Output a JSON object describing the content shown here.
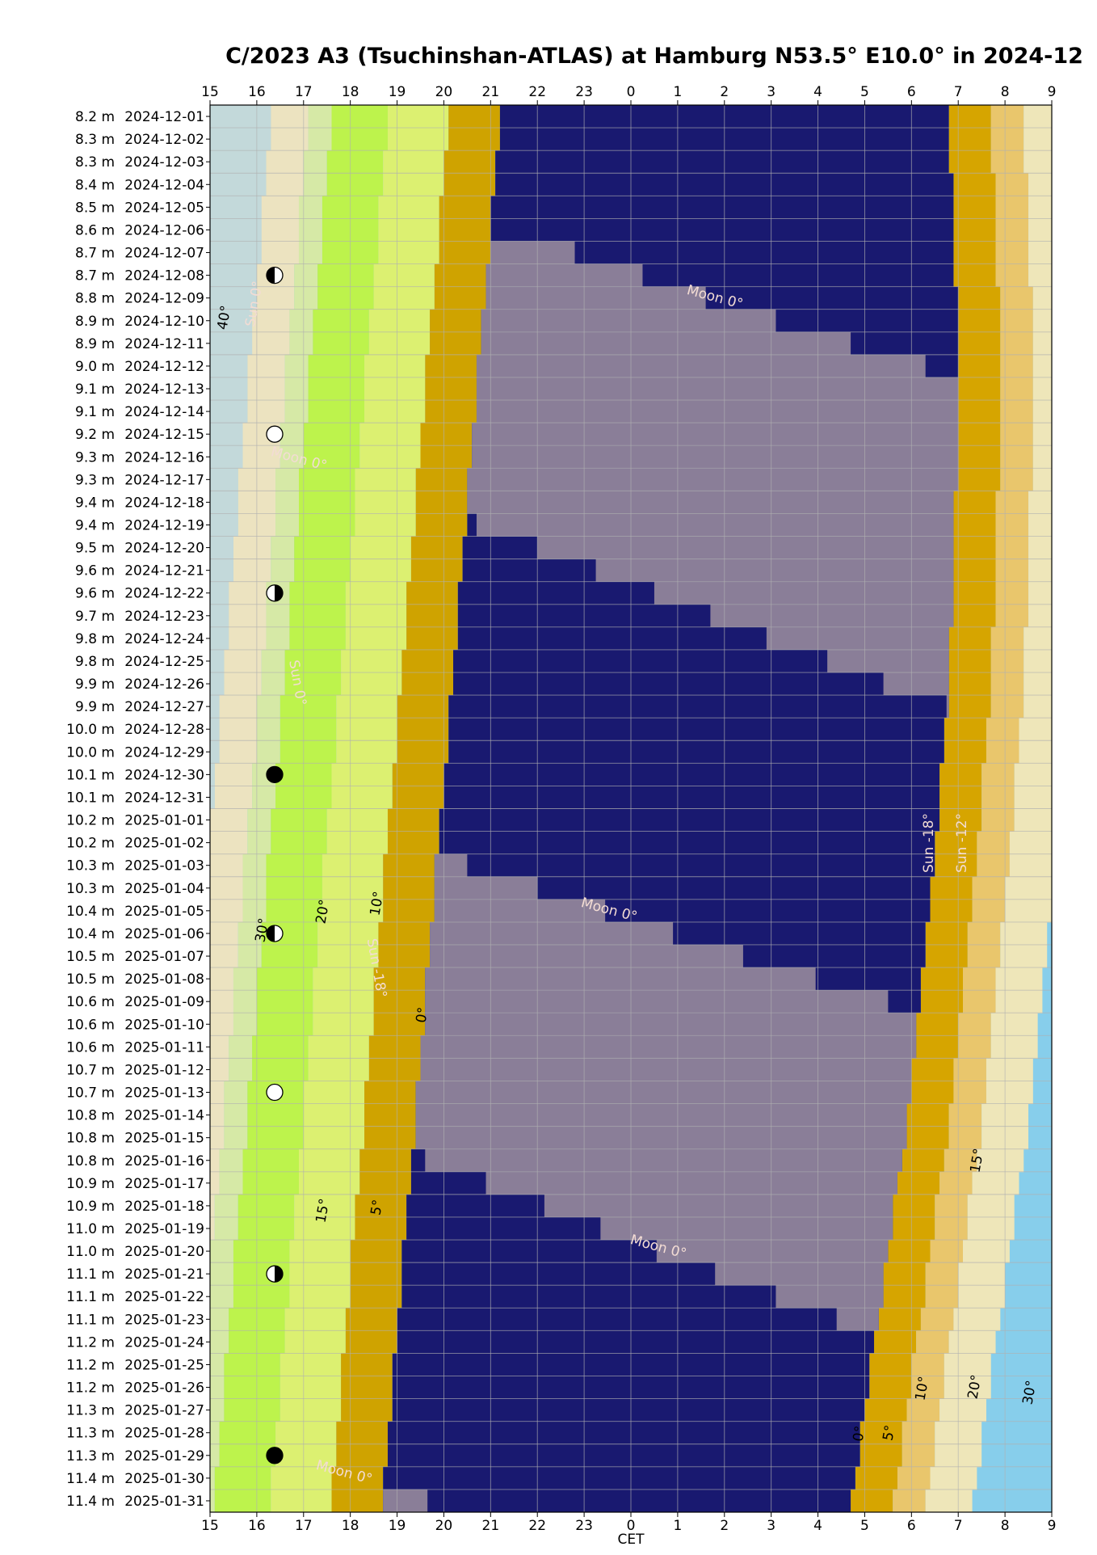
{
  "chart_data": {
    "type": "visibility",
    "title": "C/2023 A3 (Tsuchinshan-ATLAS) at Hamburg N53.5° E10.0° in 2024-12",
    "xlabel": "CET",
    "categories": [
      "2024-12-01",
      "2024-12-02",
      "2024-12-03",
      "2024-12-04",
      "2024-12-05",
      "2024-12-06",
      "2024-12-07",
      "2024-12-08",
      "2024-12-09",
      "2024-12-10",
      "2024-12-11",
      "2024-12-12",
      "2024-12-13",
      "2024-12-14",
      "2024-12-15",
      "2024-12-16",
      "2024-12-17",
      "2024-12-18",
      "2024-12-19",
      "2024-12-20",
      "2024-12-21",
      "2024-12-22",
      "2024-12-23",
      "2024-12-24",
      "2024-12-25",
      "2024-12-26",
      "2024-12-27",
      "2024-12-28",
      "2024-12-29",
      "2024-12-30",
      "2024-12-31",
      "2025-01-01",
      "2025-01-02",
      "2025-01-03",
      "2025-01-04",
      "2025-01-05",
      "2025-01-06",
      "2025-01-07",
      "2025-01-08",
      "2025-01-09",
      "2025-01-10",
      "2025-01-11",
      "2025-01-12",
      "2025-01-13",
      "2025-01-14",
      "2025-01-15",
      "2025-01-16",
      "2025-01-17",
      "2025-01-18",
      "2025-01-19",
      "2025-01-20",
      "2025-01-21",
      "2025-01-22",
      "2025-01-23",
      "2025-01-24",
      "2025-01-25",
      "2025-01-26",
      "2025-01-27",
      "2025-01-28",
      "2025-01-29",
      "2025-01-30",
      "2025-01-31"
    ],
    "values": [
      8.2,
      8.3,
      8.3,
      8.4,
      8.5,
      8.6,
      8.7,
      8.7,
      8.8,
      8.9,
      8.9,
      9.0,
      9.1,
      9.1,
      9.2,
      9.3,
      9.3,
      9.4,
      9.4,
      9.5,
      9.6,
      9.6,
      9.7,
      9.8,
      9.8,
      9.9,
      9.9,
      10.0,
      10.0,
      10.1,
      10.1,
      10.2,
      10.2,
      10.3,
      10.3,
      10.4,
      10.4,
      10.5,
      10.5,
      10.6,
      10.6,
      10.6,
      10.7,
      10.7,
      10.8,
      10.8,
      10.8,
      10.9,
      10.9,
      11.0,
      11.0,
      11.1,
      11.1,
      11.1,
      11.2,
      11.2,
      11.2,
      11.3,
      11.3,
      11.3,
      11.4,
      11.4
    ],
    "value_labels": [
      "8.2 m",
      "8.3 m",
      "8.3 m",
      "8.4 m",
      "8.5 m",
      "8.6 m",
      "8.7 m",
      "8.7 m",
      "8.8 m",
      "8.9 m",
      "8.9 m",
      "9.0 m",
      "9.1 m",
      "9.1 m",
      "9.2 m",
      "9.3 m",
      "9.3 m",
      "9.4 m",
      "9.4 m",
      "9.5 m",
      "9.6 m",
      "9.6 m",
      "9.7 m",
      "9.8 m",
      "9.8 m",
      "9.9 m",
      "9.9 m",
      "10.0 m",
      "10.0 m",
      "10.1 m",
      "10.1 m",
      "10.2 m",
      "10.2 m",
      "10.3 m",
      "10.3 m",
      "10.4 m",
      "10.4 m",
      "10.5 m",
      "10.5 m",
      "10.6 m",
      "10.6 m",
      "10.6 m",
      "10.7 m",
      "10.7 m",
      "10.8 m",
      "10.8 m",
      "10.8 m",
      "10.9 m",
      "10.9 m",
      "11.0 m",
      "11.0 m",
      "11.1 m",
      "11.1 m",
      "11.1 m",
      "11.2 m",
      "11.2 m",
      "11.2 m",
      "11.3 m",
      "11.3 m",
      "11.3 m",
      "11.4 m",
      "11.4 m"
    ],
    "xlim": [
      15,
      33
    ],
    "xticks": [
      15,
      16,
      17,
      18,
      19,
      20,
      21,
      22,
      23,
      {
        "value": 24,
        "label": "0"
      },
      {
        "value": 25,
        "label": "1"
      },
      {
        "value": 26,
        "label": "2"
      },
      {
        "value": 27,
        "label": "3"
      },
      {
        "value": 28,
        "label": "4"
      },
      {
        "value": 29,
        "label": "5"
      },
      {
        "value": 30,
        "label": "6"
      },
      {
        "value": 31,
        "label": "7"
      },
      {
        "value": 32,
        "label": "8"
      },
      {
        "value": 33,
        "label": "9"
      }
    ],
    "grid": true,
    "night_start": [
      21.2,
      21.2,
      21.1,
      21.1,
      21.0,
      21.0,
      21.0,
      20.9,
      20.9,
      20.8,
      20.8,
      20.7,
      20.7,
      20.7,
      20.6,
      20.6,
      20.5,
      20.5,
      20.5,
      20.4,
      20.4,
      20.3,
      20.3,
      20.3,
      20.2,
      20.2,
      20.1,
      20.1,
      20.1,
      20.0,
      20.0,
      19.9,
      19.9,
      19.8,
      19.8,
      19.8,
      19.7,
      19.7,
      19.6,
      19.6,
      19.6,
      19.5,
      19.5,
      19.4,
      19.4,
      19.4,
      19.3,
      19.3,
      19.2,
      19.2,
      19.1,
      19.1,
      19.1,
      19.0,
      19.0,
      18.9,
      18.9,
      18.9,
      18.8,
      18.8,
      18.7,
      18.7
    ],
    "night_end": [
      30.8,
      30.8,
      30.8,
      30.9,
      30.9,
      30.9,
      30.9,
      30.9,
      31.0,
      31.0,
      31.0,
      31.0,
      31.0,
      31.0,
      31.0,
      31.0,
      31.0,
      30.9,
      30.9,
      30.9,
      30.9,
      30.9,
      30.9,
      30.8,
      30.8,
      30.8,
      30.8,
      30.7,
      30.7,
      30.6,
      30.6,
      30.6,
      30.5,
      30.5,
      30.4,
      30.4,
      30.3,
      30.3,
      30.2,
      30.2,
      30.1,
      30.1,
      30.0,
      30.0,
      29.9,
      29.9,
      29.8,
      29.7,
      29.6,
      29.6,
      29.5,
      29.4,
      29.4,
      29.3,
      29.2,
      29.1,
      29.1,
      29.0,
      28.9,
      28.9,
      28.8,
      28.7
    ],
    "moon": [
      null,
      null,
      null,
      null,
      null,
      null,
      [
        15,
        22.8
      ],
      [
        15,
        24.25
      ],
      [
        15,
        25.6
      ],
      [
        15,
        27.1
      ],
      [
        15,
        28.7
      ],
      [
        15,
        30.3
      ],
      [
        15,
        31.5
      ],
      [
        15,
        32.3
      ],
      [
        16.0,
        33
      ],
      [
        17.0,
        33
      ],
      [
        18.2,
        33
      ],
      [
        19.4,
        33
      ],
      [
        20.7,
        33
      ],
      [
        22.0,
        33
      ],
      [
        23.25,
        33
      ],
      [
        24.5,
        33
      ],
      [
        25.7,
        33
      ],
      [
        26.9,
        33
      ],
      [
        28.2,
        33
      ],
      [
        29.4,
        33
      ],
      [
        30.75,
        33
      ],
      null,
      null,
      null,
      null,
      null,
      null,
      [
        15,
        20.5
      ],
      [
        15,
        22.0
      ],
      [
        15,
        23.45
      ],
      [
        15,
        24.9
      ],
      [
        15,
        26.4
      ],
      [
        15,
        27.95
      ],
      [
        15,
        29.5
      ],
      [
        15,
        31.0
      ],
      [
        15,
        32.0
      ],
      [
        15,
        33
      ],
      [
        16.3,
        33
      ],
      [
        17.5,
        33
      ],
      [
        18.6,
        33
      ],
      [
        19.6,
        33
      ],
      [
        20.9,
        33
      ],
      [
        22.15,
        33
      ],
      [
        23.35,
        33
      ],
      [
        24.55,
        33
      ],
      [
        25.8,
        33
      ],
      [
        27.1,
        33
      ],
      [
        28.4,
        33
      ],
      [
        29.6,
        33
      ],
      null,
      null,
      null,
      null,
      null,
      null,
      [
        15,
        19.65
      ]
    ],
    "colors": {
      "night": "#191970",
      "moon": "#8a7e98",
      "day": "#87ceeb"
    },
    "annotations": [
      "Moon 0°",
      "Moon 0°",
      "Moon 0°",
      "Moon 0°",
      "Moon 0°",
      "Sun 0°",
      "Sun 0°",
      "Sun -18°",
      "Sun -12°",
      "Sun -18°",
      "40°",
      "30°",
      "20°",
      "10°",
      "0°",
      "15°",
      "5°",
      "0°",
      "5°",
      "10°",
      "20°",
      "30°",
      "15°"
    ]
  }
}
